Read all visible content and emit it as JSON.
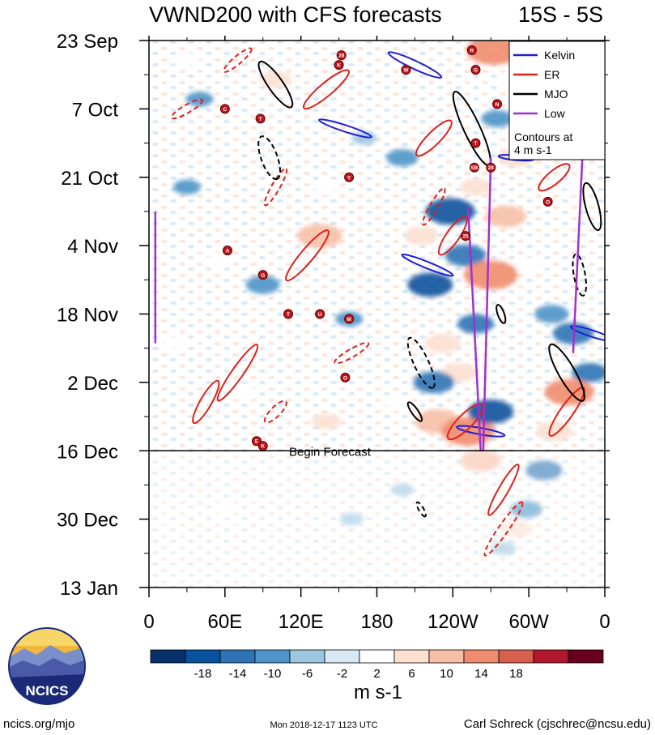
{
  "chart_data": {
    "type": "heatmap",
    "title": "VWND200 with CFS forecasts",
    "region": "15S - 5S",
    "x_ticks": [
      "0",
      "60E",
      "120E",
      "180",
      "120W",
      "60W",
      "0"
    ],
    "y_ticks": [
      "23 Sep",
      "7 Oct",
      "21 Oct",
      "4 Nov",
      "18 Nov",
      "2 Dec",
      "16 Dec",
      "30 Dec",
      "13 Jan"
    ],
    "xlim": [
      0,
      360
    ],
    "ylim_days": [
      0,
      112
    ],
    "forecast_label": "Begin Forecast",
    "forecast_start_day": 84,
    "legend": {
      "entries": [
        {
          "label": "Kelvin",
          "color": "#1f1fd6"
        },
        {
          "label": "ER",
          "color": "#e0201b"
        },
        {
          "label": "MJO",
          "color": "#000000"
        },
        {
          "label": "Low",
          "color": "#a030d0"
        }
      ],
      "note": "Contours at 4 m s-1",
      "placement": "top-right"
    },
    "colorbar": {
      "labels": [
        "-18",
        "-14",
        "-10",
        "-6",
        "-2",
        "2",
        "6",
        "10",
        "14",
        "18"
      ],
      "colors": [
        "#08306b",
        "#08519c",
        "#2e73b5",
        "#4d94c8",
        "#9dc6e0",
        "#d8e9f3",
        "#ffffff",
        "#fbe0d2",
        "#f7bfa5",
        "#ef8c6f",
        "#d6604d",
        "#b2182b",
        "#67001f"
      ],
      "units": "m s-1"
    },
    "blobs": [
      {
        "lon": 90,
        "day": 50,
        "value": -9
      },
      {
        "lon": 135,
        "day": 40,
        "value": 14
      },
      {
        "lon": 140,
        "day": 30,
        "value": 6
      },
      {
        "lon": 158,
        "day": 57,
        "value": -6
      },
      {
        "lon": 170,
        "day": 20,
        "value": -5
      },
      {
        "lon": 200,
        "day": 24,
        "value": -8
      },
      {
        "lon": 215,
        "day": 40,
        "value": 9
      },
      {
        "lon": 222,
        "day": 50,
        "value": -14
      },
      {
        "lon": 238,
        "day": 35,
        "value": -16
      },
      {
        "lon": 232,
        "day": 62,
        "value": 10
      },
      {
        "lon": 250,
        "day": 44,
        "value": -12
      },
      {
        "lon": 258,
        "day": 30,
        "value": 8
      },
      {
        "lon": 270,
        "day": 48,
        "value": 18
      },
      {
        "lon": 282,
        "day": 36,
        "value": 12
      },
      {
        "lon": 258,
        "day": 58,
        "value": -10
      },
      {
        "lon": 245,
        "day": 68,
        "value": 10
      },
      {
        "lon": 225,
        "day": 70,
        "value": -12
      },
      {
        "lon": 228,
        "day": 78,
        "value": 14
      },
      {
        "lon": 252,
        "day": 80,
        "value": 18
      },
      {
        "lon": 270,
        "day": 76,
        "value": -14
      },
      {
        "lon": 262,
        "day": 86,
        "value": 12
      },
      {
        "lon": 272,
        "day": 2,
        "value": 18
      },
      {
        "lon": 285,
        "day": 8,
        "value": 6
      },
      {
        "lon": 275,
        "day": 16,
        "value": -8
      },
      {
        "lon": 290,
        "day": 24,
        "value": 10
      },
      {
        "lon": 300,
        "day": 46,
        "value": 6
      },
      {
        "lon": 318,
        "day": 56,
        "value": -9
      },
      {
        "lon": 335,
        "day": 60,
        "value": -12
      },
      {
        "lon": 348,
        "day": 68,
        "value": -10
      },
      {
        "lon": 332,
        "day": 72,
        "value": 16
      },
      {
        "lon": 320,
        "day": 80,
        "value": 10
      },
      {
        "lon": 312,
        "day": 88,
        "value": -10
      },
      {
        "lon": 298,
        "day": 96,
        "value": -8
      },
      {
        "lon": 290,
        "day": 100,
        "value": 8
      },
      {
        "lon": 40,
        "day": 12,
        "value": -6
      },
      {
        "lon": 30,
        "day": 30,
        "value": -6
      },
      {
        "lon": 55,
        "day": 45,
        "value": 6
      },
      {
        "lon": 20,
        "day": 62,
        "value": 6
      },
      {
        "lon": 75,
        "day": 72,
        "value": 6
      },
      {
        "lon": 140,
        "day": 78,
        "value": 7
      },
      {
        "lon": 195,
        "day": 74,
        "value": 6
      },
      {
        "lon": 340,
        "day": 30,
        "value": 6
      },
      {
        "lon": 280,
        "day": 104,
        "value": -5
      },
      {
        "lon": 160,
        "day": 98,
        "value": -4
      },
      {
        "lon": 60,
        "day": 96,
        "value": 5
      },
      {
        "lon": 200,
        "day": 92,
        "value": -4
      },
      {
        "lon": 100,
        "day": 8,
        "value": 8
      },
      {
        "lon": 30,
        "day": 4,
        "value": 6
      }
    ],
    "wave_contours": [
      {
        "kind": "Kelvin",
        "lon": 210,
        "day": 5,
        "rx": 36,
        "ry": 5,
        "angle": 25
      },
      {
        "kind": "Kelvin",
        "lon": 155,
        "day": 18,
        "rx": 34,
        "ry": 4,
        "angle": 18
      },
      {
        "kind": "Kelvin",
        "lon": 220,
        "day": 46,
        "rx": 34,
        "ry": 4,
        "angle": 22
      },
      {
        "kind": "Kelvin",
        "lon": 262,
        "day": 80,
        "rx": 30,
        "ry": 4,
        "angle": 10
      },
      {
        "kind": "Kelvin",
        "lon": 350,
        "day": 60,
        "rx": 28,
        "ry": 4,
        "angle": 18
      },
      {
        "kind": "Kelvin",
        "lon": 290,
        "day": 24,
        "rx": 22,
        "ry": 3,
        "angle": 5
      },
      {
        "kind": "ER",
        "lon": 70,
        "day": 68,
        "rx": 42,
        "ry": 7,
        "angle": -55
      },
      {
        "kind": "ER",
        "lon": 125,
        "day": 44,
        "rx": 40,
        "ry": 8,
        "angle": -50
      },
      {
        "kind": "ER",
        "lon": 140,
        "day": 10,
        "rx": 36,
        "ry": 8,
        "angle": -40
      },
      {
        "kind": "ER",
        "lon": 225,
        "day": 20,
        "rx": 30,
        "ry": 8,
        "angle": -45
      },
      {
        "kind": "ER",
        "lon": 240,
        "day": 40,
        "rx": 28,
        "ry": 8,
        "angle": -55
      },
      {
        "kind": "ER",
        "lon": 250,
        "day": 78,
        "rx": 30,
        "ry": 9,
        "angle": -45
      },
      {
        "kind": "ER",
        "lon": 280,
        "day": 92,
        "rx": 36,
        "ry": 6,
        "angle": -60
      },
      {
        "kind": "ER",
        "lon": 330,
        "day": 76,
        "rx": 36,
        "ry": 8,
        "angle": -55
      },
      {
        "kind": "ER",
        "lon": 320,
        "day": 28,
        "rx": 24,
        "ry": 8,
        "angle": -40
      },
      {
        "kind": "ER",
        "lon": 45,
        "day": 74,
        "rx": 30,
        "ry": 7,
        "angle": -60
      },
      {
        "kind": "ER",
        "lon": 160,
        "day": 64,
        "rx": 24,
        "ry": 5,
        "angle": -30,
        "dashed": true
      },
      {
        "kind": "ER",
        "lon": 70,
        "day": 4,
        "rx": 22,
        "ry": 5,
        "angle": -40,
        "dashed": true
      },
      {
        "kind": "ER",
        "lon": 30,
        "day": 14,
        "rx": 22,
        "ry": 5,
        "angle": -30,
        "dashed": true
      },
      {
        "kind": "ER",
        "lon": 100,
        "day": 30,
        "rx": 26,
        "ry": 5,
        "angle": -60,
        "dashed": true
      },
      {
        "kind": "ER",
        "lon": 225,
        "day": 34,
        "rx": 26,
        "ry": 5,
        "angle": -60,
        "dashed": true
      },
      {
        "kind": "ER",
        "lon": 280,
        "day": 100,
        "rx": 40,
        "ry": 6,
        "angle": -55,
        "dashed": true
      },
      {
        "kind": "ER",
        "lon": 100,
        "day": 76,
        "rx": 18,
        "ry": 6,
        "angle": -45,
        "dashed": true
      },
      {
        "kind": "MJO",
        "lon": 95,
        "day": 24,
        "rx": 28,
        "ry": 10,
        "angle": 70,
        "dashed": true
      },
      {
        "kind": "MJO",
        "lon": 100,
        "day": 9,
        "rx": 34,
        "ry": 9,
        "angle": 55
      },
      {
        "kind": "MJO",
        "lon": 255,
        "day": 18,
        "rx": 50,
        "ry": 10,
        "angle": 65
      },
      {
        "kind": "MJO",
        "lon": 330,
        "day": 68,
        "rx": 40,
        "ry": 10,
        "angle": 60
      },
      {
        "kind": "MJO",
        "lon": 350,
        "day": 34,
        "rx": 30,
        "ry": 8,
        "angle": 75
      },
      {
        "kind": "MJO",
        "lon": 215,
        "day": 66,
        "rx": 34,
        "ry": 9,
        "angle": 65,
        "dashed": true
      },
      {
        "kind": "MJO",
        "lon": 340,
        "day": 48,
        "rx": 26,
        "ry": 7,
        "angle": 80,
        "dashed": true
      },
      {
        "kind": "MJO",
        "lon": 210,
        "day": 76,
        "rx": 14,
        "ry": 4,
        "angle": 55
      },
      {
        "kind": "MJO",
        "lon": 215,
        "day": 96,
        "rx": 10,
        "ry": 3,
        "angle": 60,
        "dashed": true
      },
      {
        "kind": "MJO",
        "lon": 278,
        "day": 56,
        "rx": 12,
        "ry": 4,
        "angle": 70
      }
    ],
    "low_lines": [
      {
        "lon1": 252,
        "day1": 34,
        "lon2": 262,
        "day2": 84
      },
      {
        "lon1": 270,
        "day1": 24,
        "lon2": 264,
        "day2": 84
      },
      {
        "lon1": 343,
        "day1": 20,
        "lon2": 335,
        "day2": 64
      },
      {
        "lon1": 5,
        "day1": 35,
        "lon2": 5,
        "day2": 62
      }
    ],
    "storms": [
      {
        "lon": 152,
        "day": 3,
        "label": "28"
      },
      {
        "lon": 150,
        "day": 5,
        "label": "K"
      },
      {
        "lon": 60,
        "day": 14,
        "label": "C"
      },
      {
        "lon": 88,
        "day": 16,
        "label": "T"
      },
      {
        "lon": 158,
        "day": 28,
        "label": "Y"
      },
      {
        "lon": 62,
        "day": 43,
        "label": "A"
      },
      {
        "lon": 90,
        "day": 48,
        "label": "G"
      },
      {
        "lon": 110,
        "day": 56,
        "label": "T"
      },
      {
        "lon": 135,
        "day": 56,
        "label": "U"
      },
      {
        "lon": 158,
        "day": 57,
        "label": "M"
      },
      {
        "lon": 155,
        "day": 69,
        "label": "O"
      },
      {
        "lon": 85,
        "day": 82,
        "label": "E"
      },
      {
        "lon": 90,
        "day": 83,
        "label": "K"
      },
      {
        "lon": 203,
        "day": 6,
        "label": "W"
      },
      {
        "lon": 255,
        "day": 2,
        "label": "R"
      },
      {
        "lon": 258,
        "day": 6,
        "label": "G"
      },
      {
        "lon": 275,
        "day": 13,
        "label": "N"
      },
      {
        "lon": 258,
        "day": 21,
        "label": "T"
      },
      {
        "lon": 257,
        "day": 26,
        "label": "SB"
      },
      {
        "lon": 270,
        "day": 26,
        "label": "28"
      },
      {
        "lon": 250,
        "day": 40,
        "label": "25"
      },
      {
        "lon": 315,
        "day": 33,
        "label": "O"
      }
    ]
  },
  "footer": {
    "left": "ncics.org/mjo",
    "center": "Mon 2018-12-17 1123 UTC",
    "right": "Carl Schreck (cjschrec@ncsu.edu)",
    "logo_text": "NCICS"
  }
}
